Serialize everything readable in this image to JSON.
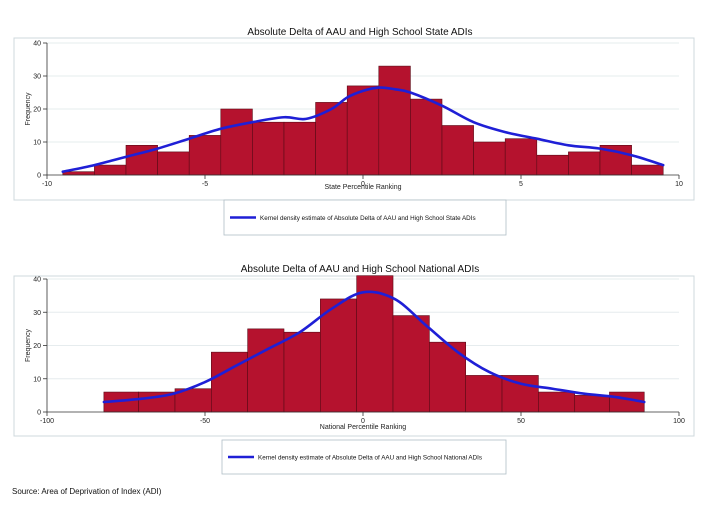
{
  "chart_data": [
    {
      "type": "bar",
      "title": "Absolute Delta of AAU and High School State ADIs",
      "xlabel": "State Percentile Ranking",
      "ylabel": "Frequency",
      "xlim": [
        -10,
        10
      ],
      "ylim": [
        0,
        40
      ],
      "xticks": [
        -10,
        -5,
        0,
        5,
        10
      ],
      "yticks": [
        0,
        10,
        20,
        30,
        40
      ],
      "bins": [
        {
          "start": -9.5,
          "end": -8.5,
          "value": 1
        },
        {
          "start": -8.5,
          "end": -7.5,
          "value": 3
        },
        {
          "start": -7.5,
          "end": -6.5,
          "value": 9
        },
        {
          "start": -6.5,
          "end": -5.5,
          "value": 7
        },
        {
          "start": -5.5,
          "end": -4.5,
          "value": 12
        },
        {
          "start": -4.5,
          "end": -3.5,
          "value": 20
        },
        {
          "start": -3.5,
          "end": -2.5,
          "value": 16
        },
        {
          "start": -2.5,
          "end": -1.5,
          "value": 16
        },
        {
          "start": -1.5,
          "end": -0.5,
          "value": 22
        },
        {
          "start": -0.5,
          "end": 0.5,
          "value": 27
        },
        {
          "start": 0.5,
          "end": 1.5,
          "value": 33
        },
        {
          "start": 1.5,
          "end": 2.5,
          "value": 23
        },
        {
          "start": 2.5,
          "end": 3.5,
          "value": 15
        },
        {
          "start": 3.5,
          "end": 4.5,
          "value": 10
        },
        {
          "start": 4.5,
          "end": 5.5,
          "value": 11
        },
        {
          "start": 5.5,
          "end": 6.5,
          "value": 6
        },
        {
          "start": 6.5,
          "end": 7.5,
          "value": 7
        },
        {
          "start": 7.5,
          "end": 8.5,
          "value": 9
        },
        {
          "start": 8.5,
          "end": 9.5,
          "value": 3
        }
      ],
      "kde": {
        "x": [
          -9.5,
          -8.5,
          -7.5,
          -6.5,
          -5.5,
          -4.5,
          -3.5,
          -2.5,
          -1.8,
          -1,
          -0.5,
          0,
          0.5,
          1,
          1.5,
          2.5,
          3.5,
          4.5,
          5.5,
          6.5,
          7.5,
          8.5,
          9.5
        ],
        "y": [
          1,
          3,
          5.5,
          8,
          11,
          14,
          16,
          17.5,
          17,
          20,
          23.5,
          25.5,
          26.5,
          26,
          25,
          21,
          16,
          13,
          11,
          9,
          8,
          6,
          3
        ]
      },
      "legend": "Kernel density estimate of Absolute Delta of AAU and High School State ADIs",
      "colors": {
        "bar": "#b5122e",
        "bar_edge": "#5a0a16",
        "kde": "#1f1fd6"
      }
    },
    {
      "type": "bar",
      "title": "Absolute Delta of AAU and High School National ADIs",
      "xlabel": "National Percentile Ranking",
      "ylabel": "Frequency",
      "xlim": [
        -100,
        100
      ],
      "ylim": [
        0,
        40
      ],
      "xticks": [
        -100,
        -50,
        0,
        50,
        100
      ],
      "yticks": [
        0,
        10,
        20,
        30,
        40
      ],
      "bins": [
        {
          "start": -82,
          "end": -71,
          "value": 6
        },
        {
          "start": -71,
          "end": -59.5,
          "value": 6
        },
        {
          "start": -59.5,
          "end": -48,
          "value": 7
        },
        {
          "start": -48,
          "end": -36.5,
          "value": 18
        },
        {
          "start": -36.5,
          "end": -25,
          "value": 25
        },
        {
          "start": -25,
          "end": -13.5,
          "value": 24
        },
        {
          "start": -13.5,
          "end": -2,
          "value": 34
        },
        {
          "start": -2,
          "end": 9.5,
          "value": 41
        },
        {
          "start": 9.5,
          "end": 21,
          "value": 29
        },
        {
          "start": 21,
          "end": 32.5,
          "value": 21
        },
        {
          "start": 32.5,
          "end": 44,
          "value": 11
        },
        {
          "start": 44,
          "end": 55.5,
          "value": 11
        },
        {
          "start": 55.5,
          "end": 67,
          "value": 6
        },
        {
          "start": 67,
          "end": 78,
          "value": 5
        },
        {
          "start": 78,
          "end": 89,
          "value": 6
        }
      ],
      "kde": {
        "x": [
          -82,
          -70,
          -60,
          -50,
          -40,
          -30,
          -20,
          -10,
          0,
          10,
          20,
          30,
          40,
          50,
          60,
          70,
          80,
          89
        ],
        "y": [
          3,
          4,
          5.5,
          9,
          14,
          19,
          24,
          31,
          36,
          34,
          26,
          18,
          12,
          8.5,
          7,
          5.5,
          4.5,
          3
        ]
      },
      "legend": "Kernel density estimate of Absolute Delta of AAU and High School National ADIs",
      "colors": {
        "bar": "#b5122e",
        "bar_edge": "#5a0a16",
        "kde": "#1f1fd6"
      }
    }
  ],
  "source": "Source: Area of Deprivation of Index (ADI)"
}
